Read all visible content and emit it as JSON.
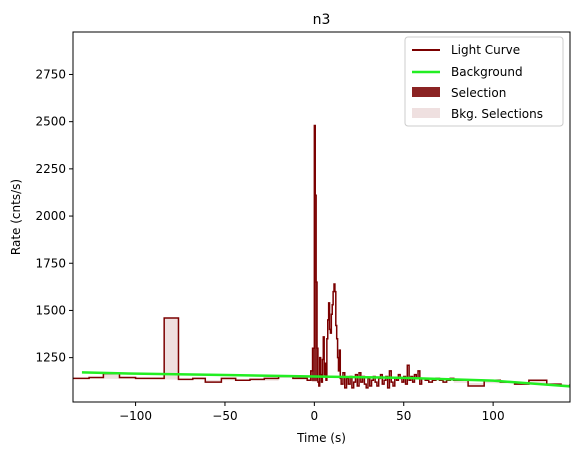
{
  "chart_data": {
    "type": "line",
    "title": "n3",
    "xlabel": "Time (s)",
    "ylabel": "Rate (cnts/s)",
    "xlim": [
      -135,
      143
    ],
    "ylim": [
      1015,
      2975
    ],
    "xticks": [
      -100,
      -50,
      0,
      50,
      100
    ],
    "yticks": [
      1250,
      1500,
      1750,
      2000,
      2250,
      2500,
      2750
    ],
    "legend_position": "top-right",
    "legend": [
      {
        "label": "Light Curve",
        "kind": "line"
      },
      {
        "label": "Background",
        "kind": "line"
      },
      {
        "label": "Selection",
        "kind": "patch"
      },
      {
        "label": "Bkg. Selections",
        "kind": "patch"
      }
    ],
    "colors": {
      "light_curve": "#7b0000",
      "background": "#22ee22",
      "selection": "#8b2323",
      "bkg_selection": "#efe0e0"
    },
    "bkg_selections": [
      [
        -135,
        -20
      ],
      [
        78,
        143
      ]
    ],
    "selection": [
      -1.5,
      3.5
    ],
    "light_curve": {
      "edges": [
        -135,
        -126,
        -118,
        -109,
        -100,
        -92,
        -84,
        -76,
        -68,
        -61,
        -52,
        -44,
        -36,
        -28,
        -20,
        -12,
        -4,
        -2,
        -1,
        0,
        0.5,
        1,
        1.5,
        2,
        2.5,
        3,
        3.5,
        4,
        4.5,
        5,
        5.5,
        6,
        6.5,
        7,
        7.5,
        8,
        8.5,
        9,
        9.5,
        10,
        10.5,
        11,
        11.5,
        12,
        12.5,
        13,
        13.5,
        14,
        14.5,
        15,
        16,
        17,
        18,
        19,
        20,
        21,
        22,
        23,
        24,
        25,
        26,
        27,
        28,
        29,
        30,
        31,
        32,
        33,
        34,
        35,
        36,
        37,
        38,
        39,
        40,
        41,
        42,
        43,
        44,
        45,
        46,
        47,
        48,
        49,
        50,
        51,
        52,
        53,
        54,
        55,
        56,
        57,
        58,
        59,
        60,
        62,
        64,
        66,
        68,
        70,
        72,
        74,
        76,
        78,
        86,
        95,
        104,
        112,
        120,
        130,
        138,
        143
      ],
      "values": [
        1140,
        1145,
        1165,
        1145,
        1140,
        1140,
        1460,
        1135,
        1140,
        1120,
        1140,
        1130,
        1135,
        1140,
        1150,
        1140,
        1130,
        1180,
        1300,
        2480,
        2110,
        1650,
        1300,
        1120,
        1100,
        1250,
        1160,
        1120,
        1240,
        1360,
        1160,
        1220,
        1130,
        1350,
        1450,
        1540,
        1400,
        1380,
        1480,
        1530,
        1600,
        1640,
        1600,
        1420,
        1350,
        1250,
        1180,
        1290,
        1140,
        1110,
        1170,
        1090,
        1140,
        1110,
        1150,
        1090,
        1120,
        1160,
        1100,
        1170,
        1120,
        1150,
        1110,
        1090,
        1140,
        1100,
        1130,
        1150,
        1120,
        1100,
        1140,
        1160,
        1110,
        1130,
        1150,
        1090,
        1180,
        1120,
        1100,
        1140,
        1130,
        1160,
        1140,
        1120,
        1150,
        1110,
        1210,
        1130,
        1150,
        1120,
        1160,
        1140,
        1180,
        1110,
        1140,
        1130,
        1120,
        1130,
        1140,
        1130,
        1120,
        1130,
        1140,
        1130,
        1100,
        1130,
        1120,
        1110,
        1130,
        1110,
        1100,
        1110
      ]
    },
    "background_curve": {
      "x": [
        -130,
        -100,
        -50,
        0,
        50,
        100,
        143
      ],
      "y": [
        1172,
        1165,
        1158,
        1150,
        1143,
        1128,
        1098
      ]
    }
  }
}
